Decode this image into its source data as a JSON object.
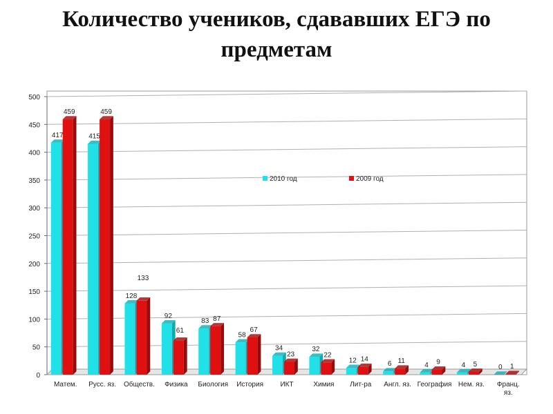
{
  "title_line1": "Количество учеников, сдававших ЕГЭ по",
  "title_line2": "предметам",
  "chart_data": {
    "type": "bar",
    "title": "Количество учеников, сдававших ЕГЭ по предметам",
    "categories": [
      "Матем.",
      "Русс. яз.",
      "Обществ.",
      "Физика",
      "Биология",
      "История",
      "ИКТ",
      "Химия",
      "Лит-ра",
      "Англ. яз.",
      "География",
      "Нем. яз.",
      "Франц. яз."
    ],
    "series": [
      {
        "name": "2010 год",
        "values": [
          417,
          415,
          128,
          92,
          83,
          58,
          34,
          32,
          12,
          6,
          4,
          4,
          0
        ],
        "color": "#22e0e8",
        "shade": "#14a8b0"
      },
      {
        "name": "2009 год",
        "values": [
          459,
          459,
          133,
          61,
          87,
          67,
          23,
          22,
          14,
          11,
          9,
          5,
          1
        ],
        "color": "#e01010",
        "shade": "#9a0a0a"
      }
    ],
    "ylim": [
      0,
      500
    ],
    "yticks": [
      0,
      50,
      100,
      150,
      200,
      250,
      300,
      350,
      400,
      450,
      500
    ],
    "grid": true,
    "legend_position": "top-right"
  }
}
